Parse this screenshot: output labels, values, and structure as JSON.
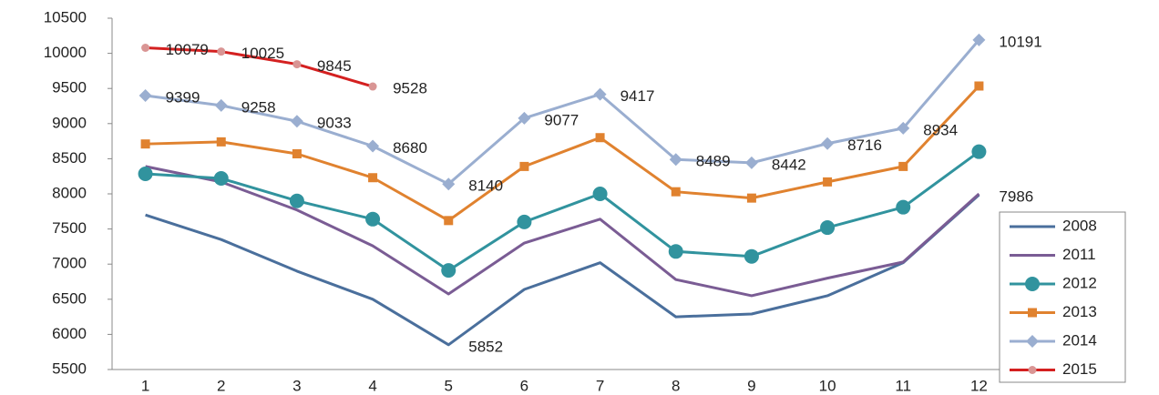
{
  "chart_data": {
    "type": "line",
    "categories": [
      "1",
      "2",
      "3",
      "4",
      "5",
      "6",
      "7",
      "8",
      "9",
      "10",
      "11",
      "12"
    ],
    "ylim": [
      5500,
      10500
    ],
    "yticks": [
      5500,
      6000,
      6500,
      7000,
      7500,
      8000,
      8500,
      9000,
      9500,
      10000,
      10500
    ],
    "grid": false,
    "legend": "right",
    "series": [
      {
        "name": "2008",
        "color": "#4a6f9c",
        "marker": "none",
        "data_labels": [
          4,
          11
        ],
        "values": [
          7700,
          7350,
          6900,
          6500,
          5852,
          6640,
          7020,
          6250,
          6290,
          6550,
          7020,
          7986
        ]
      },
      {
        "name": "2011",
        "color": "#7a5c94",
        "marker": "none",
        "values": [
          8390,
          8170,
          7770,
          7260,
          6575,
          7300,
          7640,
          6780,
          6550,
          6800,
          7030,
          8000
        ]
      },
      {
        "name": "2012",
        "color": "#31939e",
        "marker": "circle",
        "values": [
          8285,
          8220,
          7900,
          7640,
          6910,
          7600,
          8000,
          7180,
          7110,
          7520,
          7810,
          8600
        ]
      },
      {
        "name": "2013",
        "color": "#e0822f",
        "marker": "square",
        "values": [
          8710,
          8740,
          8570,
          8230,
          7620,
          8390,
          8800,
          8030,
          7940,
          8170,
          8390,
          9535
        ]
      },
      {
        "name": "2014",
        "color": "#9aaed0",
        "marker": "diamond",
        "data_labels": [
          0,
          1,
          2,
          3,
          4,
          5,
          6,
          7,
          8,
          9,
          10,
          11
        ],
        "values": [
          9399,
          9258,
          9033,
          8680,
          8140,
          9077,
          9417,
          8489,
          8442,
          8716,
          8934,
          10191
        ]
      },
      {
        "name": "2015",
        "color": "#d42020",
        "marker_color": "#d99594",
        "marker": "dot",
        "data_labels": [
          0,
          1,
          2,
          3
        ],
        "values": [
          10079,
          10025,
          9845,
          9528,
          null,
          null,
          null,
          null,
          null,
          null,
          null,
          null
        ]
      }
    ]
  }
}
